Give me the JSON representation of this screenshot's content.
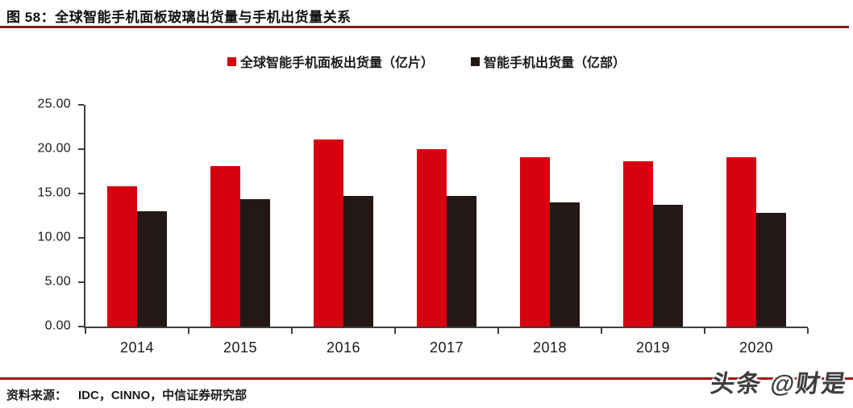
{
  "header": {
    "title": "图 58：全球智能手机面板玻璃出货量与手机出货量关系"
  },
  "footer": {
    "source_label": "资料来源：",
    "source_text": "IDC，CINNO，中信证券研究部",
    "watermark": "头条 @财是"
  },
  "colors": {
    "panel_red": "#d7000f",
    "phone_dark": "#231815",
    "title_rule": "#851a1c",
    "footer_rule": "#a11616",
    "axis": "#3f3f3f"
  },
  "chart_data": {
    "type": "bar",
    "title": "全球智能手机面板玻璃出货量与手机出货量关系",
    "categories": [
      "2014",
      "2015",
      "2016",
      "2017",
      "2018",
      "2019",
      "2020"
    ],
    "series": [
      {
        "name": "全球智能手机面板出货量（亿片）",
        "color": "#d7000f",
        "values": [
          15.8,
          18.1,
          21.1,
          20.0,
          19.1,
          18.6,
          19.1
        ]
      },
      {
        "name": "智能手机出货量（亿部）",
        "color": "#231815",
        "values": [
          13.0,
          14.4,
          14.7,
          14.7,
          14.0,
          13.7,
          12.8
        ]
      }
    ],
    "xlabel": "",
    "ylabel": "",
    "ylim": [
      0,
      25
    ],
    "yticks": [
      "0.00",
      "5.00",
      "10.00",
      "15.00",
      "20.00",
      "25.00"
    ],
    "grid": false,
    "legend_position": "top"
  }
}
